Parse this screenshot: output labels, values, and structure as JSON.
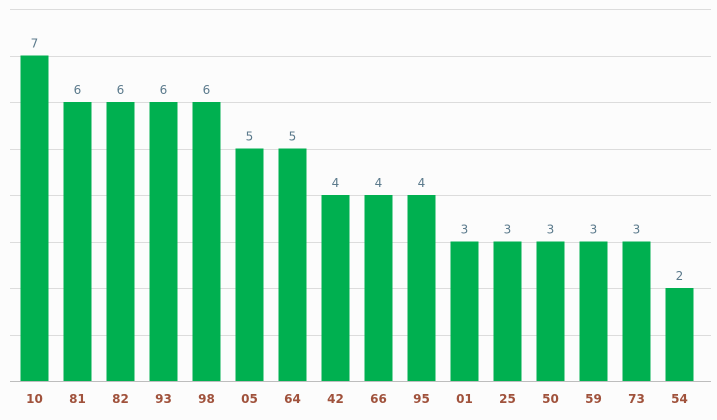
{
  "chart_data": {
    "type": "bar",
    "categories": [
      "10",
      "81",
      "82",
      "93",
      "98",
      "05",
      "64",
      "42",
      "66",
      "95",
      "01",
      "25",
      "50",
      "59",
      "73",
      "54"
    ],
    "values": [
      7,
      6,
      6,
      6,
      6,
      5,
      5,
      4,
      4,
      4,
      3,
      3,
      3,
      3,
      3,
      2
    ],
    "title": "",
    "xlabel": "",
    "ylabel": "",
    "ylim": [
      0,
      8
    ],
    "grid": true,
    "legend": "none",
    "colors": {
      "bar": "#00b050",
      "value_label": "#5b7a8c",
      "tick_label": "#a0523c",
      "grid": "#dcdcdc"
    }
  }
}
